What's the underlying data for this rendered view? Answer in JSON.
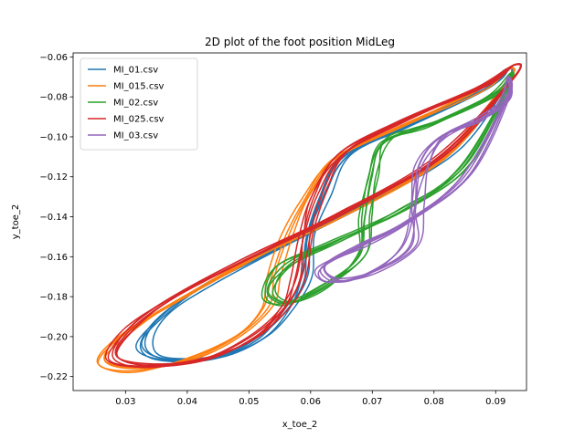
{
  "chart_data": {
    "type": "line",
    "title": "2D plot of the foot position MidLeg",
    "xlabel": "x_toe_2",
    "ylabel": "y_toe_2",
    "xlim": [
      0.0215,
      0.095
    ],
    "ylim": [
      -0.227,
      -0.058
    ],
    "xticks": [
      0.03,
      0.04,
      0.05,
      0.06,
      0.07,
      0.08,
      0.09
    ],
    "xtick_labels": [
      "0.03",
      "0.04",
      "0.05",
      "0.06",
      "0.07",
      "0.08",
      "0.09"
    ],
    "yticks": [
      -0.06,
      -0.08,
      -0.1,
      -0.12,
      -0.14,
      -0.16,
      -0.18,
      -0.2,
      -0.22
    ],
    "ytick_labels": [
      "−0.06",
      "−0.08",
      "−0.10",
      "−0.12",
      "−0.14",
      "−0.16",
      "−0.18",
      "−0.20",
      "−0.22"
    ],
    "grid": false,
    "legend_position": "top-left",
    "series": [
      {
        "name": "MI_01.csv",
        "color": "#1f77b4",
        "loop": [
          [
            0.092,
            -0.066
          ],
          [
            0.088,
            -0.076
          ],
          [
            0.075,
            -0.095
          ],
          [
            0.066,
            -0.11
          ],
          [
            0.062,
            -0.13
          ],
          [
            0.06,
            -0.15
          ],
          [
            0.059,
            -0.17
          ],
          [
            0.057,
            -0.185
          ],
          [
            0.052,
            -0.2
          ],
          [
            0.045,
            -0.21
          ],
          [
            0.036,
            -0.211
          ],
          [
            0.033,
            -0.204
          ],
          [
            0.036,
            -0.19
          ],
          [
            0.043,
            -0.174
          ],
          [
            0.056,
            -0.153
          ],
          [
            0.07,
            -0.132
          ],
          [
            0.083,
            -0.108
          ],
          [
            0.092,
            -0.072
          ]
        ],
        "cycles": 5,
        "jitter_x": 0.0018,
        "jitter_y": 0.003
      },
      {
        "name": "MI_015.csv",
        "color": "#ff7f0e",
        "loop": [
          [
            0.092,
            -0.066
          ],
          [
            0.087,
            -0.077
          ],
          [
            0.074,
            -0.096
          ],
          [
            0.064,
            -0.111
          ],
          [
            0.059,
            -0.13
          ],
          [
            0.056,
            -0.15
          ],
          [
            0.054,
            -0.17
          ],
          [
            0.053,
            -0.185
          ],
          [
            0.048,
            -0.2
          ],
          [
            0.04,
            -0.212
          ],
          [
            0.031,
            -0.217
          ],
          [
            0.026,
            -0.213
          ],
          [
            0.029,
            -0.2
          ],
          [
            0.037,
            -0.185
          ],
          [
            0.05,
            -0.162
          ],
          [
            0.065,
            -0.139
          ],
          [
            0.081,
            -0.112
          ],
          [
            0.092,
            -0.072
          ]
        ],
        "cycles": 4,
        "jitter_x": 0.0016,
        "jitter_y": 0.003
      },
      {
        "name": "MI_02.csv",
        "color": "#2ca02c",
        "loop": [
          [
            0.0925,
            -0.068
          ],
          [
            0.09,
            -0.078
          ],
          [
            0.08,
            -0.093
          ],
          [
            0.072,
            -0.102
          ],
          [
            0.07,
            -0.12
          ],
          [
            0.069,
            -0.14
          ],
          [
            0.068,
            -0.16
          ],
          [
            0.062,
            -0.175
          ],
          [
            0.056,
            -0.183
          ],
          [
            0.053,
            -0.178
          ],
          [
            0.056,
            -0.164
          ],
          [
            0.064,
            -0.152
          ],
          [
            0.075,
            -0.136
          ],
          [
            0.085,
            -0.115
          ],
          [
            0.092,
            -0.075
          ]
        ],
        "cycles": 6,
        "jitter_x": 0.002,
        "jitter_y": 0.0035
      },
      {
        "name": "MI_025.csv",
        "color": "#d62728",
        "loop": [
          [
            0.093,
            -0.064
          ],
          [
            0.088,
            -0.074
          ],
          [
            0.075,
            -0.092
          ],
          [
            0.065,
            -0.108
          ],
          [
            0.061,
            -0.13
          ],
          [
            0.059,
            -0.15
          ],
          [
            0.058,
            -0.17
          ],
          [
            0.056,
            -0.185
          ],
          [
            0.051,
            -0.2
          ],
          [
            0.043,
            -0.211
          ],
          [
            0.034,
            -0.215
          ],
          [
            0.028,
            -0.21
          ],
          [
            0.031,
            -0.195
          ],
          [
            0.038,
            -0.18
          ],
          [
            0.05,
            -0.16
          ],
          [
            0.065,
            -0.138
          ],
          [
            0.081,
            -0.11
          ],
          [
            0.093,
            -0.07
          ]
        ],
        "cycles": 6,
        "jitter_x": 0.0018,
        "jitter_y": 0.0028
      },
      {
        "name": "MI_03.csv",
        "color": "#9467bd",
        "loop": [
          [
            0.092,
            -0.07
          ],
          [
            0.092,
            -0.08
          ],
          [
            0.088,
            -0.09
          ],
          [
            0.081,
            -0.1
          ],
          [
            0.078,
            -0.115
          ],
          [
            0.077,
            -0.135
          ],
          [
            0.076,
            -0.155
          ],
          [
            0.07,
            -0.168
          ],
          [
            0.064,
            -0.172
          ],
          [
            0.062,
            -0.165
          ],
          [
            0.068,
            -0.155
          ],
          [
            0.076,
            -0.142
          ],
          [
            0.085,
            -0.12
          ],
          [
            0.092,
            -0.08
          ]
        ],
        "cycles": 6,
        "jitter_x": 0.002,
        "jitter_y": 0.0035
      }
    ]
  },
  "colors": {
    "axes": "#000000",
    "background": "#ffffff",
    "legend_border": "#cccccc"
  }
}
